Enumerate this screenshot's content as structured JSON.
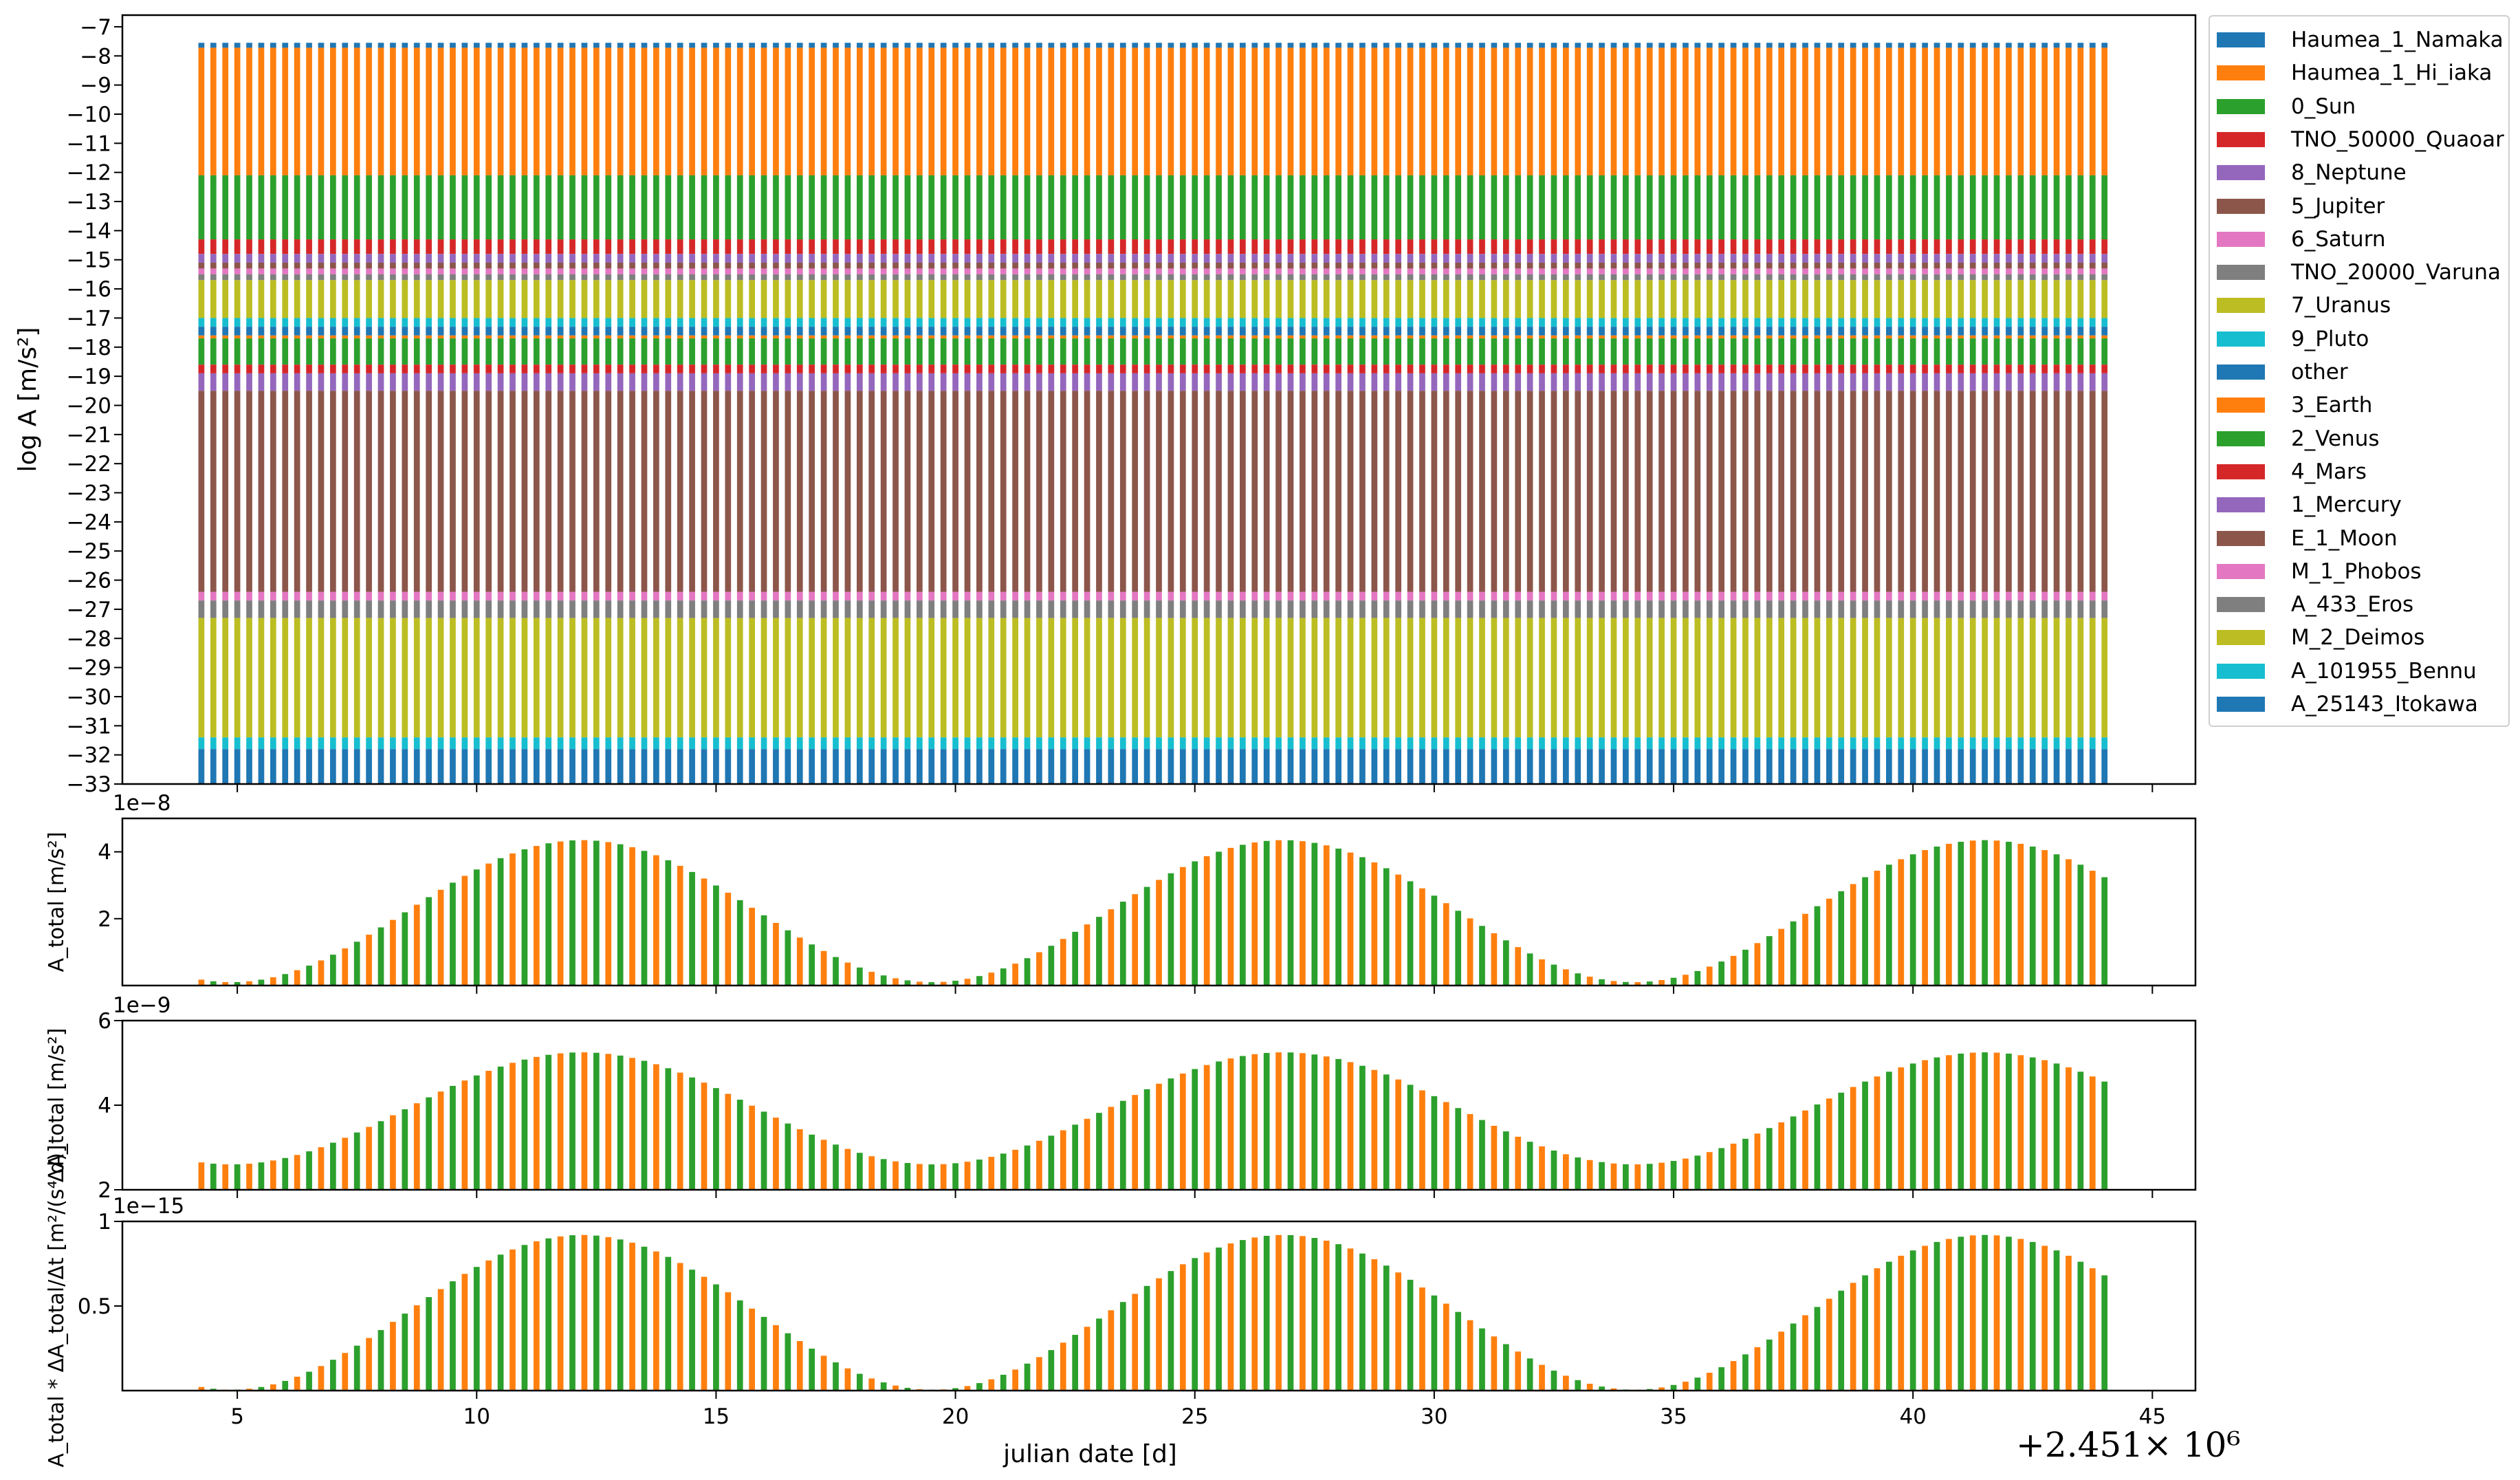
{
  "chart_data": [
    {
      "type": "bar",
      "stacked": true,
      "ylabel": "log A  [m/s²]",
      "ylim": [
        -33,
        -6.6
      ],
      "yticks": [
        -7,
        -8,
        -9,
        -10,
        -11,
        -12,
        -13,
        -14,
        -15,
        -16,
        -17,
        -18,
        -19,
        -20,
        -21,
        -22,
        -23,
        -24,
        -25,
        -26,
        -27,
        -28,
        -29,
        -30,
        -31,
        -32,
        -33
      ],
      "x_range": [
        4.25,
        44.0
      ],
      "x_step": 0.25,
      "legend_position": "outside-right",
      "series": [
        {
          "name": "Haumea_1_Namaka",
          "color": "#1f77b4",
          "from": -7.72,
          "to": -7.55
        },
        {
          "name": "Haumea_1_Hi_iaka",
          "color": "#ff7f0e",
          "from": -12.1,
          "to": -7.72
        },
        {
          "name": "0_Sun",
          "color": "#2ca02c",
          "from": -14.3,
          "to": -12.1
        },
        {
          "name": "TNO_50000_Quaoar",
          "color": "#d62728",
          "from": -14.8,
          "to": -14.3
        },
        {
          "name": "8_Neptune",
          "color": "#9467bd",
          "from": -15.1,
          "to": -14.8
        },
        {
          "name": "5_Jupiter",
          "color": "#8c564b",
          "from": -15.3,
          "to": -15.1
        },
        {
          "name": "6_Saturn",
          "color": "#e377c2",
          "from": -15.5,
          "to": -15.3
        },
        {
          "name": "TNO_20000_Varuna",
          "color": "#7f7f7f",
          "from": -15.7,
          "to": -15.5
        },
        {
          "name": "7_Uranus",
          "color": "#bcbd22",
          "from": -17.0,
          "to": -15.7
        },
        {
          "name": "9_Pluto",
          "color": "#17becf",
          "from": -17.3,
          "to": -17.0
        },
        {
          "name": "other",
          "color": "#1f77b4",
          "from": -17.6,
          "to": -17.3
        },
        {
          "name": "3_Earth",
          "color": "#ff7f0e",
          "from": -17.7,
          "to": -17.6
        },
        {
          "name": "2_Venus",
          "color": "#2ca02c",
          "from": -18.6,
          "to": -17.7
        },
        {
          "name": "4_Mars",
          "color": "#d62728",
          "from": -18.9,
          "to": -18.6
        },
        {
          "name": "1_Mercury",
          "color": "#9467bd",
          "from": -19.5,
          "to": -18.9
        },
        {
          "name": "E_1_Moon",
          "color": "#8c564b",
          "from": -26.4,
          "to": -19.5
        },
        {
          "name": "M_1_Phobos",
          "color": "#e377c2",
          "from": -26.7,
          "to": -26.4
        },
        {
          "name": "A_433_Eros",
          "color": "#7f7f7f",
          "from": -27.3,
          "to": -26.7
        },
        {
          "name": "M_2_Deimos",
          "color": "#bcbd22",
          "from": -31.4,
          "to": -27.3
        },
        {
          "name": "A_101955_Bennu",
          "color": "#17becf",
          "from": -31.8,
          "to": -31.4
        },
        {
          "name": "A_25143_Itokawa",
          "color": "#1f77b4",
          "from": -33.0,
          "to": -31.8
        }
      ]
    },
    {
      "type": "bar",
      "ylabel": "A_total  [m/s²]",
      "scale_label": "1e−8",
      "ylim": [
        0,
        5
      ],
      "yticks": [
        2,
        4
      ],
      "model": "cosine",
      "min": 0.1,
      "max": 4.35,
      "period": 14.65,
      "peaks_at": [
        12.2,
        26.85,
        41.5
      ],
      "colors": [
        "#ff7f0e",
        "#2ca02c"
      ]
    },
    {
      "type": "bar",
      "ylabel": "ΔA_total  [m/s²]",
      "scale_label": "1e−9",
      "ylim": [
        2,
        6
      ],
      "yticks": [
        2,
        4,
        6
      ],
      "model": "cosine",
      "min": 2.6,
      "max": 5.25,
      "period": 14.65,
      "peaks_at": [
        12.2,
        26.85,
        41.5
      ],
      "colors": [
        "#ff7f0e",
        "#2ca02c"
      ]
    },
    {
      "type": "bar",
      "ylabel": "A_total * ΔA_total/Δt  [m²/(s⁴ d)]",
      "scale_label": "1e−15",
      "ylim": [
        0,
        1.0
      ],
      "yticks": [
        0.5,
        1.0
      ],
      "model": "cosine",
      "min": 0.005,
      "max": 0.92,
      "period": 14.65,
      "peaks_at": [
        12.2,
        26.85,
        41.5
      ],
      "colors": [
        "#ff7f0e",
        "#2ca02c"
      ]
    }
  ],
  "xaxis": {
    "label": "julian date [d]",
    "ticks": [
      5,
      10,
      15,
      20,
      25,
      30,
      35,
      40,
      45
    ],
    "xlim": [
      2.6,
      45.9
    ],
    "offset_label": "+2.451× 10⁶"
  }
}
